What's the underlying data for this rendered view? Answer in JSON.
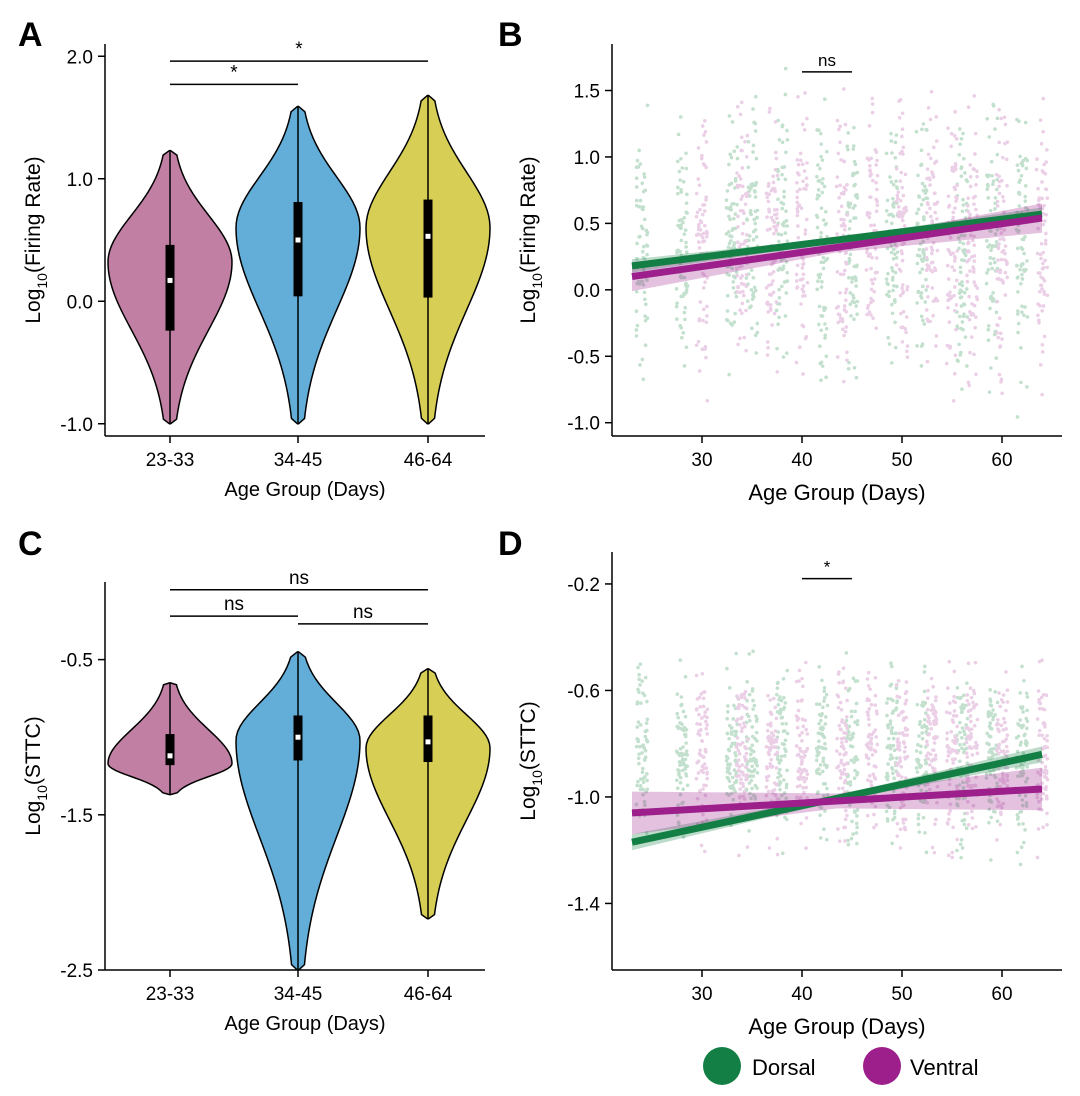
{
  "colors": {
    "young": "#c07fa3",
    "mid": "#62aed8",
    "old": "#d7cf55",
    "dorsal": "#137f44",
    "ventral": "#9c1f8c",
    "dorsal_points": "#92c8a6",
    "ventral_points": "#dba8d2",
    "axis": "#000000"
  },
  "legend": {
    "items": [
      {
        "label": "Dorsal",
        "color": "#137f44"
      },
      {
        "label": "Ventral",
        "color": "#9c1f8c"
      }
    ]
  },
  "chart_data": [
    {
      "panel": "A",
      "type": "violin",
      "xlabel": "Age Group (Days)",
      "ylabel_main": "Log",
      "ylabel_sub": "10",
      "ylabel_rest": "(Firing Rate)",
      "ylim": [
        -1.1,
        2.1
      ],
      "yticks": [
        -1.0,
        0.0,
        1.0,
        2.0
      ],
      "ytick_labels": [
        "-1.0",
        "0.0",
        "1.0",
        "2.0"
      ],
      "categories": [
        "23-33",
        "34-45",
        "46-64"
      ],
      "groups": [
        {
          "label": "23-33",
          "min": -1.0,
          "max": 1.23,
          "q1": -0.24,
          "median": 0.17,
          "q3": 0.46,
          "peak": 0.32,
          "color_key": "young"
        },
        {
          "label": "34-45",
          "min": -1.0,
          "max": 1.59,
          "q1": 0.04,
          "median": 0.5,
          "q3": 0.81,
          "peak": 0.6,
          "color_key": "mid"
        },
        {
          "label": "46-64",
          "min": -1.0,
          "max": 1.68,
          "q1": 0.03,
          "median": 0.53,
          "q3": 0.83,
          "peak": 0.6,
          "color_key": "old"
        }
      ],
      "significance": [
        {
          "from": 0,
          "to": 1,
          "y": 1.77,
          "label": "*"
        },
        {
          "from": 0,
          "to": 2,
          "y": 1.96,
          "label": "*"
        }
      ]
    },
    {
      "panel": "B",
      "type": "scatter_regression",
      "xlabel": "Age Group (Days)",
      "ylabel_main": "Log",
      "ylabel_sub": "10",
      "ylabel_rest": "(Firing Rate)",
      "xlim": [
        21,
        66
      ],
      "ylim": [
        -1.1,
        1.85
      ],
      "xticks": [
        30,
        40,
        50,
        60
      ],
      "xtick_labels": [
        "30",
        "40",
        "50",
        "60"
      ],
      "yticks": [
        -1.0,
        -0.5,
        0.0,
        0.5,
        1.0,
        1.5
      ],
      "ytick_labels": [
        "-1.0",
        "-0.5",
        "0.0",
        "0.5",
        "1.0",
        "1.5"
      ],
      "dorsal_days": [
        24,
        28,
        33,
        35,
        38,
        42,
        45,
        49,
        52,
        56,
        59,
        62
      ],
      "ventral_days": [
        30,
        34,
        37,
        40,
        44,
        47,
        50,
        53,
        55,
        57,
        60,
        64
      ],
      "point_range": [
        -1.0,
        1.75
      ],
      "series": [
        {
          "name": "Dorsal",
          "x": [
            23,
            64
          ],
          "y": [
            0.18,
            0.57
          ],
          "ci": 0.05,
          "color_key": "dorsal"
        },
        {
          "name": "Ventral",
          "x": [
            23,
            64
          ],
          "y": [
            0.1,
            0.54
          ],
          "ci": 0.11,
          "color_key": "ventral"
        }
      ],
      "significance": [
        {
          "x_from": 40,
          "x_to": 45,
          "y": 1.64,
          "label": "ns"
        }
      ]
    },
    {
      "panel": "C",
      "type": "violin",
      "xlabel": "Age Group (Days)",
      "ylabel_main": "Log",
      "ylabel_sub": "10",
      "ylabel_rest": "(STTC)",
      "ylim": [
        -2.5,
        0.0
      ],
      "yticks": [
        -2.5,
        -1.5,
        -0.5
      ],
      "ytick_labels": [
        "-2.5",
        "-1.5",
        "-0.5"
      ],
      "categories": [
        "23-33",
        "34-45",
        "46-64"
      ],
      "groups": [
        {
          "label": "23-33",
          "min": -1.37,
          "max": -0.65,
          "q1": -1.18,
          "median": -1.12,
          "q3": -0.98,
          "peak": -1.17,
          "color_key": "young"
        },
        {
          "label": "34-45",
          "min": -2.5,
          "max": -0.45,
          "q1": -1.15,
          "median": -1.0,
          "q3": -0.86,
          "peak": -1.02,
          "color_key": "mid"
        },
        {
          "label": "46-64",
          "min": -2.17,
          "max": -0.56,
          "q1": -1.16,
          "median": -1.03,
          "q3": -0.86,
          "peak": -1.07,
          "color_key": "old"
        }
      ],
      "significance": [
        {
          "from": 0,
          "to": 1,
          "y": -0.22,
          "label": "ns"
        },
        {
          "from": 1,
          "to": 2,
          "y": -0.27,
          "label": "ns"
        },
        {
          "from": 0,
          "to": 2,
          "y": -0.05,
          "label": "ns"
        }
      ]
    },
    {
      "panel": "D",
      "type": "scatter_regression",
      "xlabel": "Age Group (Days)",
      "ylabel_main": "Log",
      "ylabel_sub": "10",
      "ylabel_rest": "(STTC)",
      "xlim": [
        21,
        66
      ],
      "ylim": [
        -1.65,
        -0.08
      ],
      "xticks": [
        30,
        40,
        50,
        60
      ],
      "xtick_labels": [
        "30",
        "40",
        "50",
        "60"
      ],
      "yticks": [
        -1.4,
        -1.0,
        -0.6,
        -0.2
      ],
      "ytick_labels": [
        "-1.4",
        "-1.0",
        "-0.6",
        "-0.2"
      ],
      "dorsal_days": [
        24,
        28,
        33,
        35,
        38,
        42,
        45,
        49,
        52,
        56,
        59,
        62
      ],
      "ventral_days": [
        30,
        34,
        37,
        40,
        44,
        47,
        50,
        53,
        55,
        57,
        60,
        64
      ],
      "point_range": [
        -1.3,
        -0.4
      ],
      "series": [
        {
          "name": "Dorsal",
          "x": [
            23,
            64
          ],
          "y": [
            -1.17,
            -0.84
          ],
          "ci": 0.03,
          "color_key": "dorsal"
        },
        {
          "name": "Ventral",
          "x": [
            23,
            64
          ],
          "y": [
            -1.06,
            -0.97
          ],
          "ci": 0.08,
          "color_key": "ventral"
        }
      ],
      "significance": [
        {
          "x_from": 40,
          "x_to": 45,
          "y": -0.18,
          "label": "*"
        }
      ]
    }
  ],
  "panel_letters": [
    "A",
    "B",
    "C",
    "D"
  ]
}
